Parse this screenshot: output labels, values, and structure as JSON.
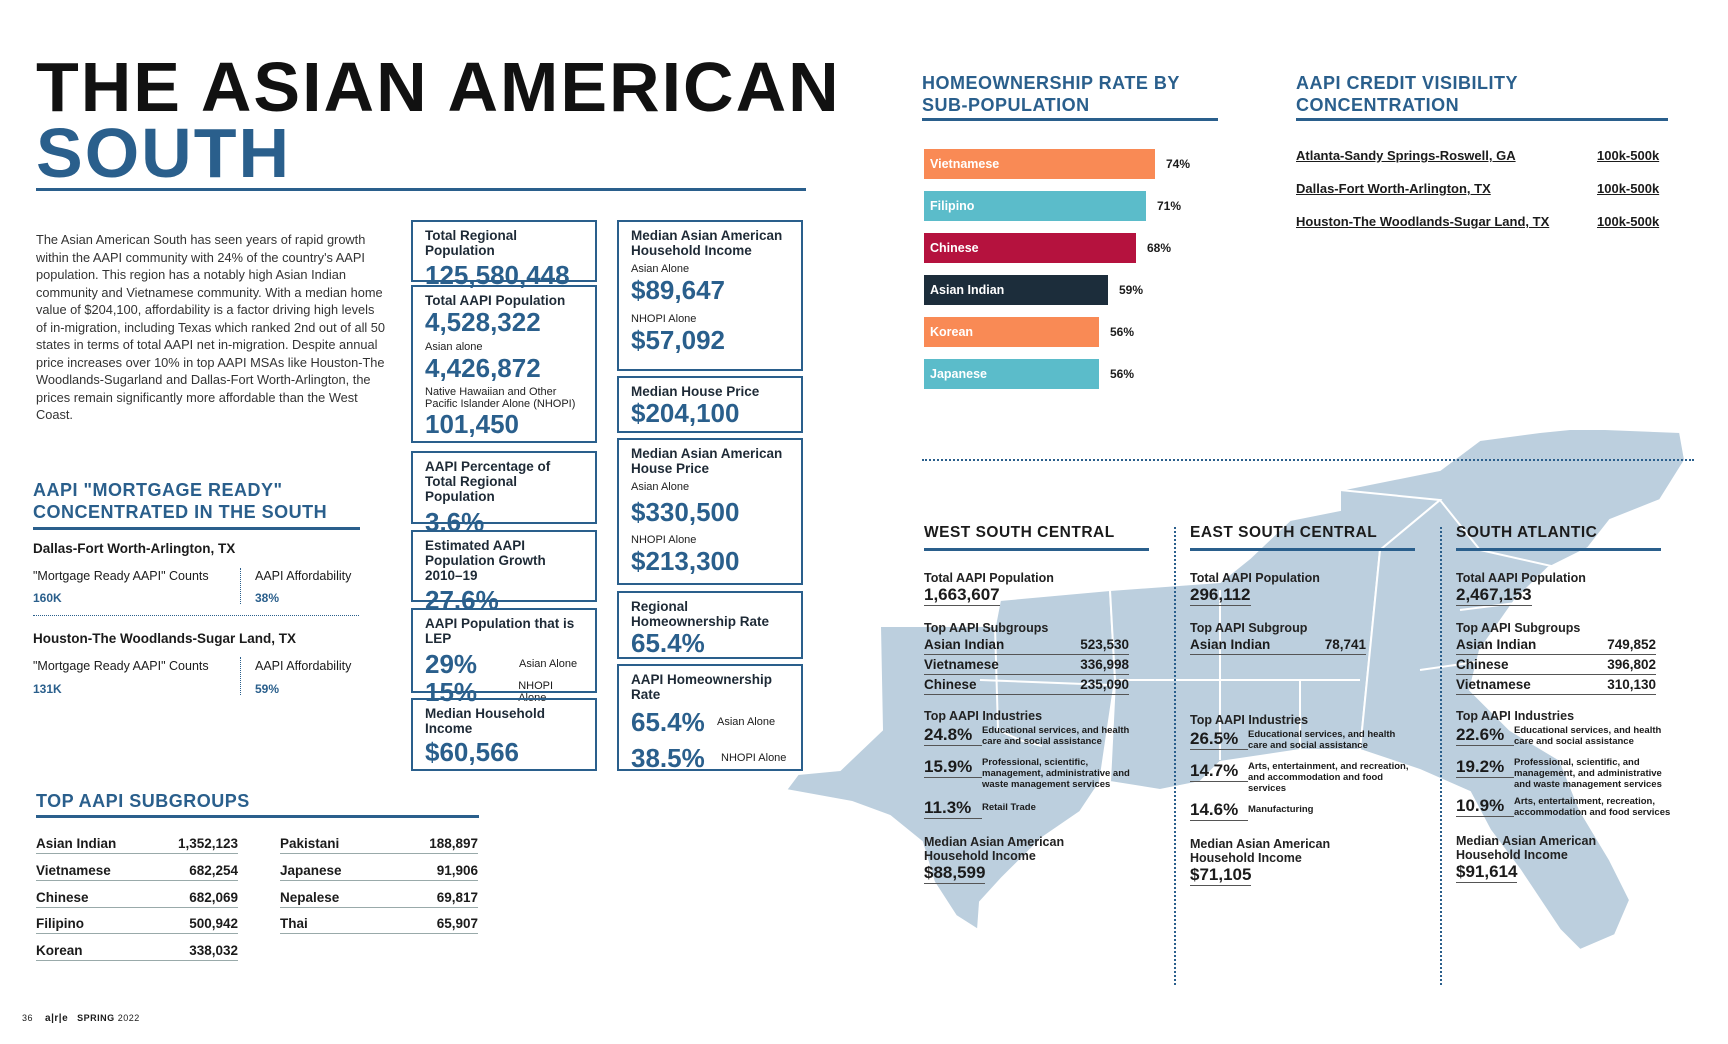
{
  "title": {
    "line1": "THE ASIAN AMERICAN",
    "line2": "SOUTH"
  },
  "intro": "The Asian American South has seen years of rapid growth within the AAPI community with 24% of the country's AAPI population. This region has a notably high Asian Indian community and Vietnamese community. With a median home value of $204,100, affordability is a factor driving high levels of in-migration, including Texas which ranked 2nd out of all 50 states in terms of total AAPI net in-migration. Despite annual price increases over 10% in top AAPI MSAs like Houston-The Woodlands-Sugarland and Dallas-Fort Worth-Arlington, the prices remain significantly more affordable than the West Coast.",
  "stats": {
    "total_regional": {
      "label": "Total Regional Population",
      "value": "125,580,448"
    },
    "total_aapi": {
      "label": "Total AAPI Population",
      "value": "4,528,322",
      "asian_label": "Asian alone",
      "asian_value": "4,426,872",
      "nhopi_label": "Native Hawaiian and Other Pacific Islander Alone (NHOPI)",
      "nhopi_value": "101,450"
    },
    "aapi_pct": {
      "label": "AAPI Percentage of Total Regional Population",
      "value": "3.6%"
    },
    "growth": {
      "label": "Estimated AAPI Population Growth 2010–19",
      "value": "27.6%"
    },
    "lep": {
      "label": "AAPI Population that is LEP",
      "v1": "29%",
      "t1": "Asian Alone",
      "v2": "15%",
      "t2": "NHOPI Alone"
    },
    "median_hh": {
      "label": "Median Household Income",
      "value": "$60,566"
    },
    "median_aa_hh": {
      "label": "Median Asian American Household Income",
      "asian_label": "Asian Alone",
      "asian_value": "$89,647",
      "nhopi_label": "NHOPI Alone",
      "nhopi_value": "$57,092"
    },
    "median_house": {
      "label": "Median House Price",
      "value": "$204,100"
    },
    "median_aa_house": {
      "label": "Median Asian American House Price",
      "asian_label": "Asian Alone",
      "asian_value": "$330,500",
      "nhopi_label": "NHOPI Alone",
      "nhopi_value": "$213,300"
    },
    "regional_ho": {
      "label": "Regional Homeownership Rate",
      "value": "65.4%"
    },
    "aapi_ho": {
      "label": "AAPI Homeownership Rate",
      "v1": "65.4%",
      "t1": "Asian Alone",
      "v2": "38.5%",
      "t2": "NHOPI Alone"
    }
  },
  "mortgage": {
    "heading_line1": "AAPI \"MORTGAGE READY\"",
    "heading_line2": "CONCENTRATED IN THE SOUTH",
    "items": [
      {
        "msa": "Dallas-Fort Worth-Arlington, TX",
        "counts_label": "\"Mortgage Ready AAPI\" Counts",
        "counts": "160K",
        "aff_label": "AAPI Affordability",
        "aff": "38%"
      },
      {
        "msa": "Houston-The Woodlands-Sugar Land, TX",
        "counts_label": "\"Mortgage Ready AAPI\" Counts",
        "counts": "131K",
        "aff_label": "AAPI Affordability",
        "aff": "59%"
      }
    ]
  },
  "subgroups": {
    "heading": "TOP AAPI SUBGROUPS",
    "left": [
      {
        "name": "Asian Indian",
        "value": "1,352,123"
      },
      {
        "name": "Vietnamese",
        "value": "682,254"
      },
      {
        "name": "Chinese",
        "value": "682,069"
      },
      {
        "name": "Filipino",
        "value": "500,942"
      },
      {
        "name": "Korean",
        "value": "338,032"
      }
    ],
    "right": [
      {
        "name": "Pakistani",
        "value": "188,897"
      },
      {
        "name": "Japanese",
        "value": "91,906"
      },
      {
        "name": "Nepalese",
        "value": "69,817"
      },
      {
        "name": "Thai",
        "value": "65,907"
      }
    ]
  },
  "chart_data": {
    "type": "bar",
    "title": "HOMEOWNERSHIP RATE BY SUB-POPULATION",
    "title_line1": "HOMEOWNERSHIP RATE BY",
    "title_line2": "SUB-POPULATION",
    "categories": [
      "Vietnamese",
      "Filipino",
      "Chinese",
      "Asian Indian",
      "Korean",
      "Japanese"
    ],
    "values": [
      74,
      71,
      68,
      59,
      56,
      56
    ],
    "labels": [
      "74%",
      "71%",
      "68%",
      "59%",
      "56%",
      "56%"
    ],
    "colors": [
      "#f98a55",
      "#5bbcca",
      "#b5123e",
      "#1c2d3b",
      "#f98a55",
      "#5bbcca"
    ],
    "xlim": [
      0,
      100
    ]
  },
  "credit": {
    "heading_line1": "AAPI CREDIT VISIBILITY",
    "heading_line2": "CONCENTRATION",
    "rows": [
      {
        "msa": "Atlanta-Sandy Springs-Roswell, GA",
        "value": "100k-500k"
      },
      {
        "msa": "Dallas-Fort Worth-Arlington, TX",
        "value": "100k-500k"
      },
      {
        "msa": "Houston-The Woodlands-Sugar Land, TX",
        "value": "100k-500k"
      }
    ]
  },
  "regions": [
    {
      "name": "WEST SOUTH CENTRAL",
      "pop_label": "Total AAPI Population",
      "pop": "1,663,607",
      "sg_label": "Top AAPI Subgroups",
      "subgroups": [
        {
          "name": "Asian Indian",
          "value": "523,530"
        },
        {
          "name": "Vietnamese",
          "value": "336,998"
        },
        {
          "name": "Chinese",
          "value": "235,090"
        }
      ],
      "ind_label": "Top AAPI Industries",
      "industries": [
        {
          "pct": "24.8%",
          "desc": "Educational services, and health care and social assistance"
        },
        {
          "pct": "15.9%",
          "desc": "Professional, scientific, management, administrative and waste management services"
        },
        {
          "pct": "11.3%",
          "desc": "Retail Trade"
        }
      ],
      "inc_label": "Median Asian American Household Income",
      "inc": "$88,599"
    },
    {
      "name": "EAST SOUTH CENTRAL",
      "pop_label": "Total AAPI Population",
      "pop": "296,112",
      "sg_label": "Top AAPI Subgroup",
      "subgroups": [
        {
          "name": "Asian Indian",
          "value": "78,741"
        }
      ],
      "ind_label": "Top AAPI Industries",
      "industries": [
        {
          "pct": "26.5%",
          "desc": "Educational services, and health care and social assistance"
        },
        {
          "pct": "14.7%",
          "desc": "Arts, entertainment, and recreation, and accommodation and food services"
        },
        {
          "pct": "14.6%",
          "desc": "Manufacturing"
        }
      ],
      "inc_label": "Median Asian American Household Income",
      "inc": "$71,105"
    },
    {
      "name": "SOUTH ATLANTIC",
      "pop_label": "Total AAPI Population",
      "pop": "2,467,153",
      "sg_label": "Top AAPI Subgroups",
      "subgroups": [
        {
          "name": "Asian Indian",
          "value": "749,852"
        },
        {
          "name": "Chinese",
          "value": "396,802"
        },
        {
          "name": "Vietnamese",
          "value": "310,130"
        }
      ],
      "ind_label": "Top AAPI Industries",
      "industries": [
        {
          "pct": "22.6%",
          "desc": "Educational services, and health care and social assistance"
        },
        {
          "pct": "19.2%",
          "desc": "Professional, scientific, and management, and administrative and waste management services"
        },
        {
          "pct": "10.9%",
          "desc": "Arts, entertainment, recreation, accommodation and food services"
        }
      ],
      "inc_label": "Median Asian American Household Income",
      "inc": "$91,614"
    }
  ],
  "footer": {
    "page": "36",
    "brand": "a|r|e",
    "issue": "SPRING",
    "year": "2022"
  }
}
